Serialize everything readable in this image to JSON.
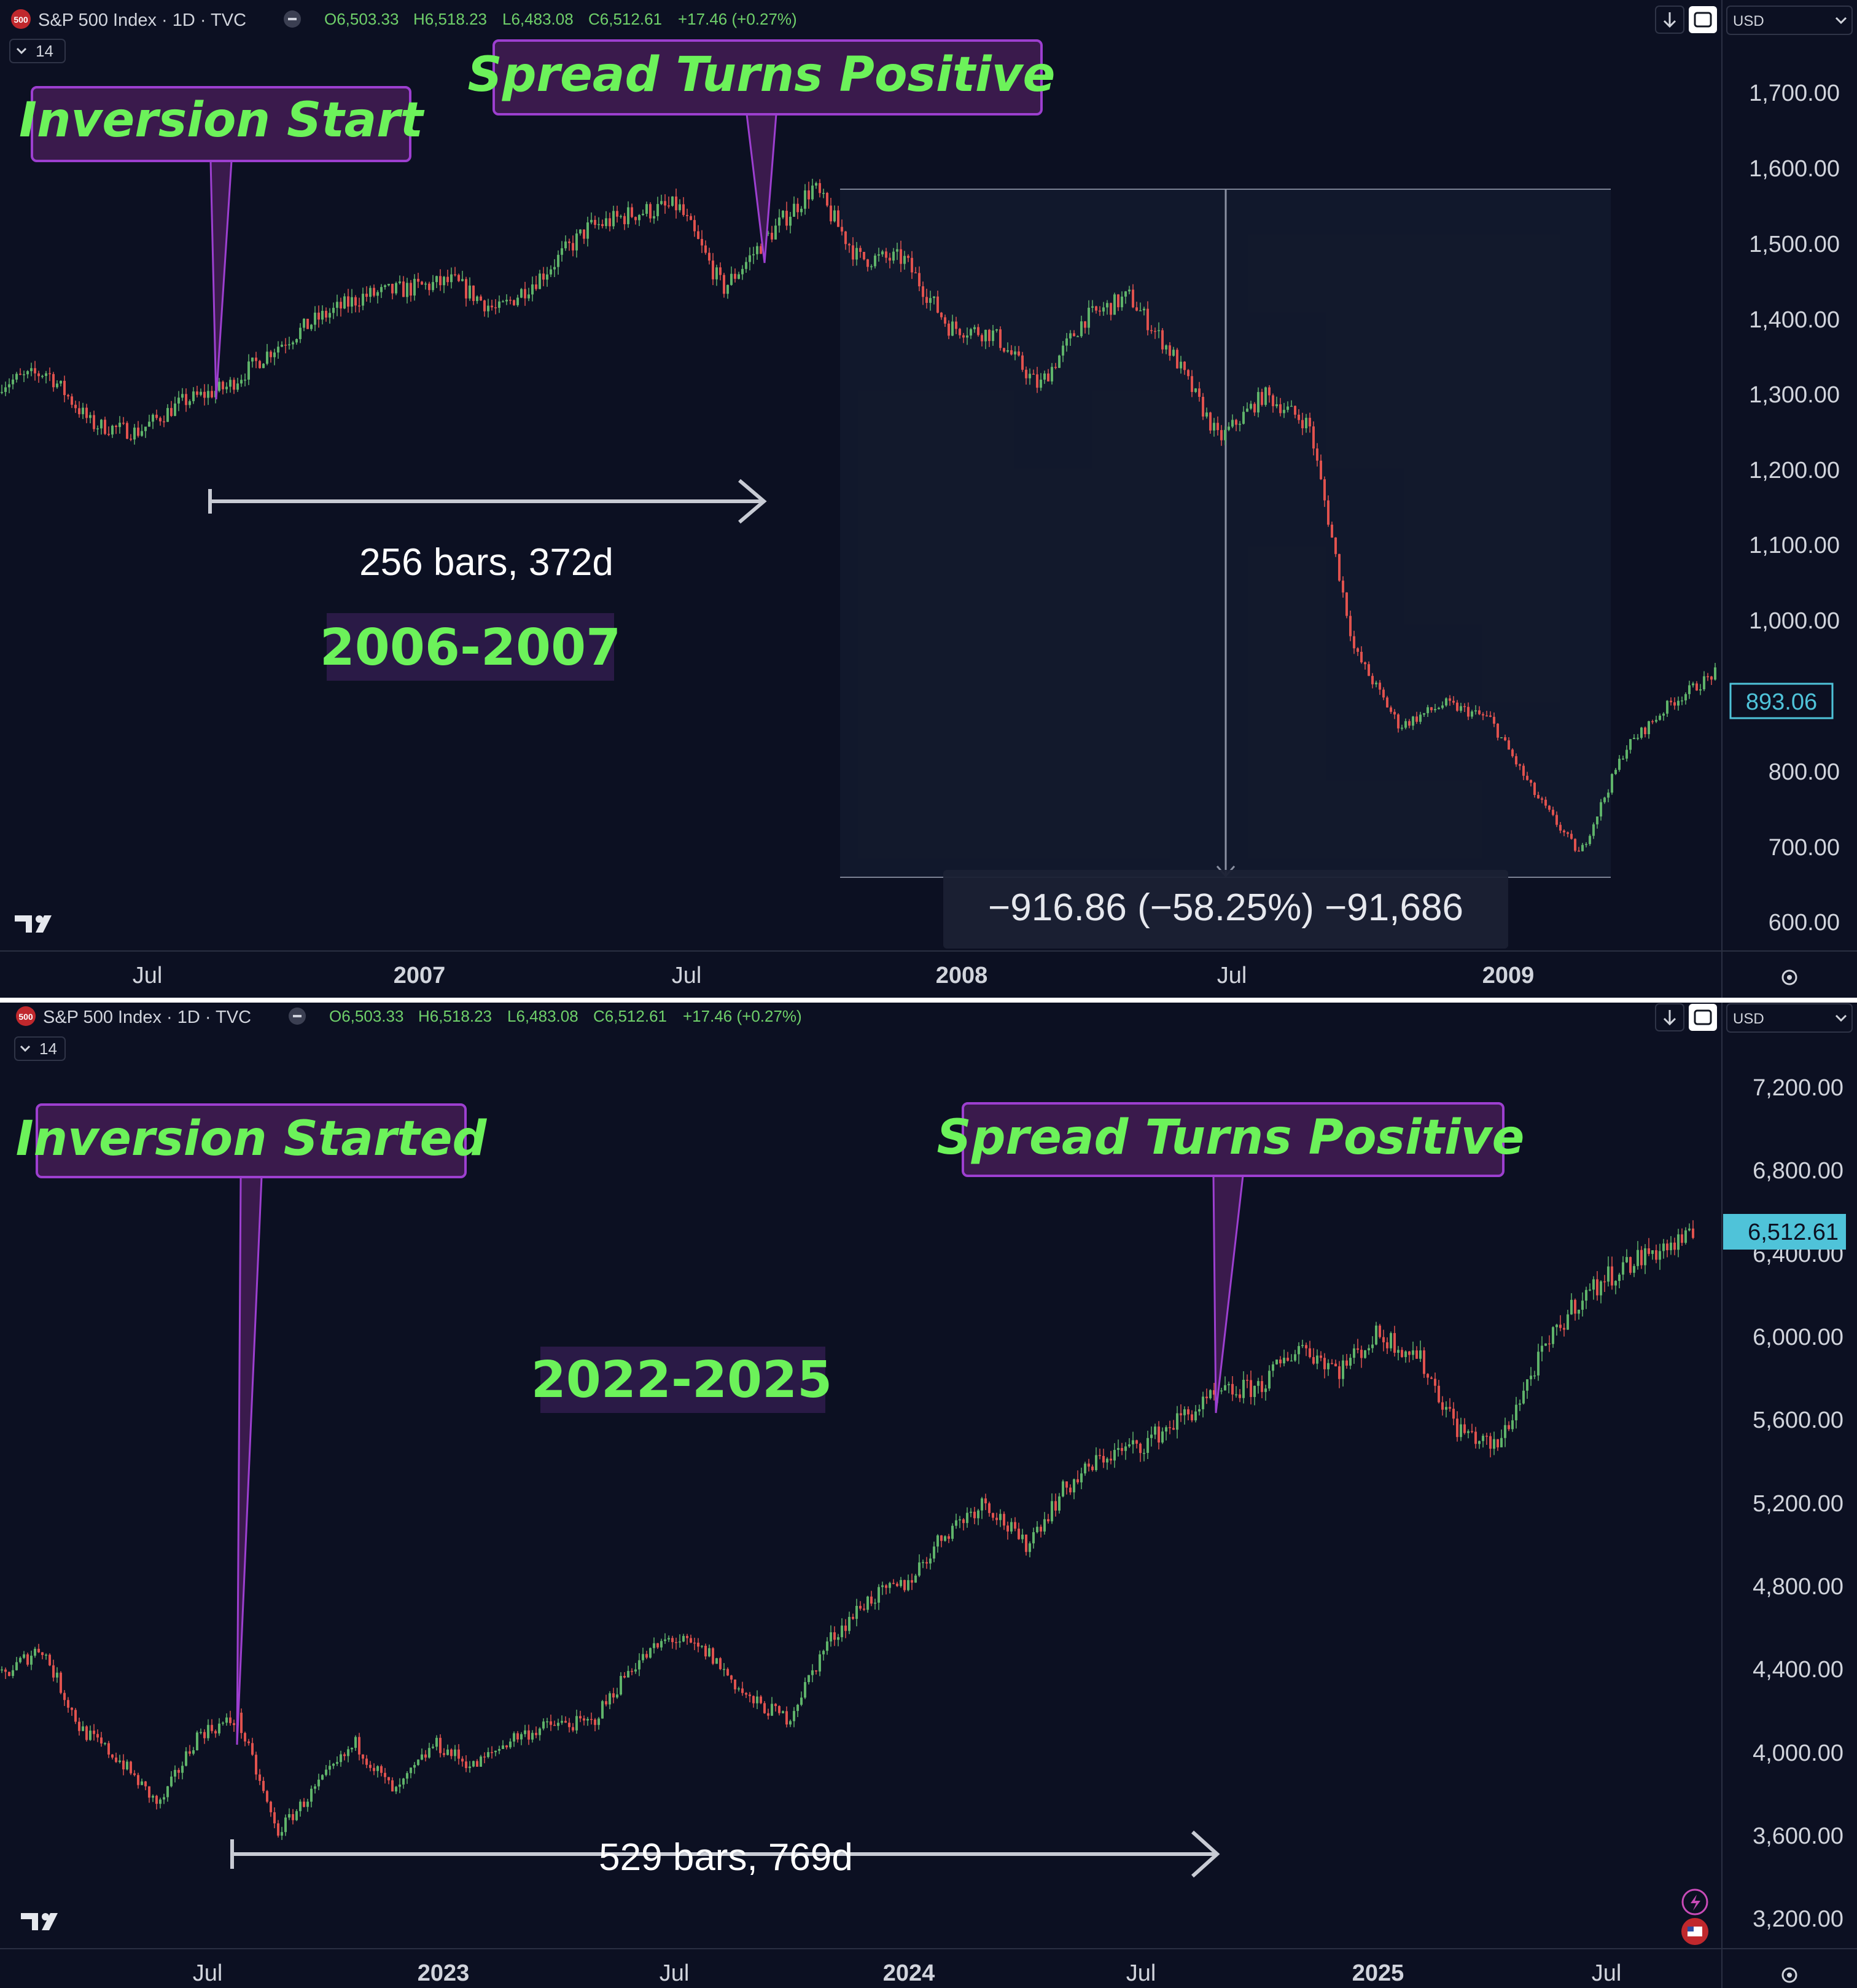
{
  "colors": {
    "background": "#0c1022",
    "axis_text": "#d1d4dc",
    "divider": "#ffffff",
    "up_candle": "#5fb36a",
    "down_candle": "#e0524e",
    "highlight_green": "#6cf25a",
    "callout_fill": "#3a1a4c",
    "callout_border": "#9d3fd0",
    "badge_fill": "#2a1a46",
    "last_price_top": "#4fc3d9",
    "last_price_bottom": "#4fc3d9"
  },
  "icons": {
    "logo": "tradingview-logo-icon",
    "settings": "gear-icon",
    "download": "download-arrow-icon",
    "maximize": "maximize-icon",
    "collapse": "chevron-down-icon"
  },
  "top_panel": {
    "header": {
      "symbol_badge": "500",
      "title": "S&P 500 Index · 1D · TVC",
      "open": "O6,503.33",
      "high": "H6,518.23",
      "low": "L6,483.08",
      "close": "C6,512.61",
      "change": "+17.46 (+0.27%)",
      "indicator_count": "14",
      "currency": "USD"
    },
    "callouts": {
      "inversion": "Inversion Start",
      "spread": "Spread Turns Positive"
    },
    "range_label": "256 bars, 372d",
    "period_label": "2006-2007",
    "measure_label": "−916.86 (−58.25%) −91,686",
    "last_price": "893.06",
    "y_ticks": [
      "1,700.00",
      "1,600.00",
      "1,500.00",
      "1,400.00",
      "1,300.00",
      "1,200.00",
      "1,100.00",
      "1,000.00",
      "800.00",
      "700.00",
      "600.00"
    ],
    "x_ticks": [
      "Jul",
      "2007",
      "Jul",
      "2008",
      "Jul",
      "2009"
    ]
  },
  "bottom_panel": {
    "header": {
      "symbol_badge": "500",
      "title": "S&P 500 Index · 1D · TVC",
      "open": "O6,503.33",
      "high": "H6,518.23",
      "low": "L6,483.08",
      "close": "C6,512.61",
      "change": "+17.46 (+0.27%)",
      "indicator_count": "14",
      "currency": "USD"
    },
    "callouts": {
      "inversion": "Inversion Started",
      "spread": "Spread Turns Positive"
    },
    "range_label": "529 bars, 769d",
    "period_label": "2022-2025",
    "last_price": "6,512.61",
    "y_ticks": [
      "7,200.00",
      "6,800.00",
      "6,400.00",
      "6,000.00",
      "5,600.00",
      "5,200.00",
      "4,800.00",
      "4,400.00",
      "4,000.00",
      "3,600.00",
      "3,200.00"
    ],
    "x_ticks": [
      "Jul",
      "2023",
      "Jul",
      "2024",
      "Jul",
      "2025",
      "Jul"
    ]
  },
  "chart_data": [
    {
      "type": "line",
      "title": "S&P 500 Index · 1D · TVC",
      "x_ticks": [
        "Jul",
        "2007",
        "Jul",
        "2008",
        "Jul",
        "2009"
      ],
      "ylim": [
        600,
        1750
      ],
      "grid": false,
      "series": [
        {
          "x": [
            "2006-04",
            "2006-05",
            "2006-06",
            "2006-07",
            "2006-08",
            "2006-09",
            "2006-10",
            "2006-11",
            "2006-12",
            "2007-01",
            "2007-02",
            "2007-03",
            "2007-04",
            "2007-05",
            "2007-06",
            "2007-07",
            "2007-08",
            "2007-09",
            "2007-10",
            "2007-11",
            "2007-12",
            "2008-01",
            "2008-02",
            "2008-03",
            "2008-04",
            "2008-05",
            "2008-06",
            "2008-07",
            "2008-08",
            "2008-09",
            "2008-10",
            "2008-11",
            "2008-12",
            "2009-01",
            "2009-02",
            "2009-03",
            "2009-04",
            "2009-05",
            "2009-06"
          ],
          "y": [
            1305,
            1320,
            1250,
            1240,
            1280,
            1300,
            1350,
            1390,
            1420,
            1430,
            1440,
            1400,
            1450,
            1510,
            1530,
            1540,
            1430,
            1500,
            1565,
            1470,
            1470,
            1380,
            1370,
            1300,
            1390,
            1420,
            1340,
            1230,
            1290,
            1250,
            950,
            850,
            880,
            860,
            760,
            680,
            820,
            880,
            920
          ]
        }
      ]
    },
    {
      "type": "line",
      "title": "S&P 500 Index · 1D · TVC",
      "x_ticks": [
        "Jul",
        "2023",
        "Jul",
        "2024",
        "Jul",
        "2025",
        "Jul"
      ],
      "ylim": [
        3100,
        7400
      ],
      "grid": false,
      "series": [
        {
          "x": [
            "2022-02",
            "2022-03",
            "2022-04",
            "2022-05",
            "2022-06",
            "2022-07",
            "2022-08",
            "2022-09",
            "2022-10",
            "2022-11",
            "2022-12",
            "2023-01",
            "2023-02",
            "2023-03",
            "2023-04",
            "2023-05",
            "2023-06",
            "2023-07",
            "2023-08",
            "2023-09",
            "2023-10",
            "2023-11",
            "2023-12",
            "2024-01",
            "2024-02",
            "2024-03",
            "2024-04",
            "2024-05",
            "2024-06",
            "2024-07",
            "2024-08",
            "2024-09",
            "2024-10",
            "2024-11",
            "2024-12",
            "2025-01",
            "2025-02",
            "2025-03",
            "2025-04",
            "2025-05",
            "2025-06",
            "2025-07",
            "2025-08",
            "2025-09"
          ],
          "y": [
            4400,
            4550,
            4150,
            4000,
            3780,
            4130,
            4200,
            3650,
            3870,
            4080,
            3840,
            4080,
            3970,
            4110,
            4170,
            4180,
            4450,
            4590,
            4510,
            4290,
            4200,
            4570,
            4770,
            4850,
            5100,
            5250,
            5030,
            5300,
            5460,
            5520,
            5650,
            5760,
            5800,
            6000,
            5880,
            6050,
            5950,
            5600,
            5500,
            5900,
            6200,
            6350,
            6450,
            6510
          ]
        }
      ]
    }
  ]
}
